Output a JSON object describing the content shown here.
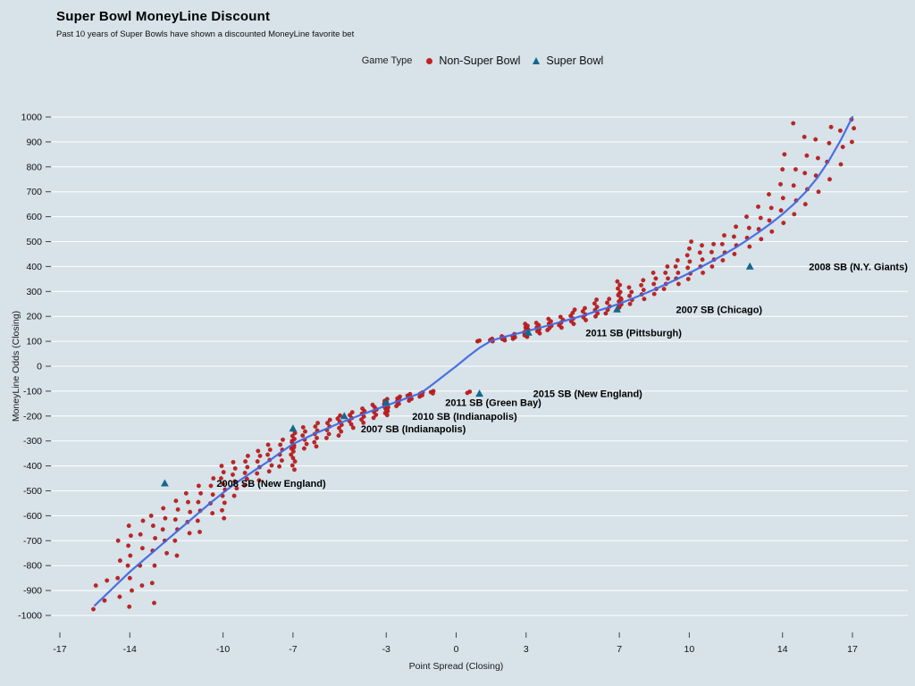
{
  "title": "Super Bowl MoneyLine Discount",
  "subtitle": "Past 10 years of Super Bowls have shown a discounted MoneyLine favorite bet",
  "legend": {
    "label": "Game Type",
    "items": [
      {
        "name": "Non-Super Bowl",
        "color": "#c32222",
        "marker": "circle"
      },
      {
        "name": "Super Bowl",
        "color": "#15688c",
        "marker": "triangle"
      }
    ]
  },
  "chart_data": {
    "type": "scatter",
    "title": "Super Bowl MoneyLine Discount",
    "subtitle": "Past 10 years of Super Bowls have shown a discounted MoneyLine favorite bet",
    "xlabel": "Point Spread (Closing)",
    "ylabel": "MoneyLine Odds (Closing)",
    "xlim": [
      -17,
      17
    ],
    "ylim": [
      -1000,
      1000
    ],
    "x_ticks": [
      -17,
      -14,
      -10,
      -7,
      -3,
      0,
      3,
      7,
      10,
      14,
      17
    ],
    "y_ticks": [
      -1000,
      -900,
      -800,
      -700,
      -600,
      -500,
      -400,
      -300,
      -200,
      -100,
      0,
      100,
      200,
      300,
      400,
      500,
      600,
      700,
      800,
      900,
      1000
    ],
    "grid": {
      "horizontal": true,
      "vertical": false,
      "color": "#ffffff"
    },
    "legend_position": "top-center",
    "series": [
      {
        "name": "Non-Super Bowl",
        "marker": "circle",
        "color": "#c32222",
        "points_by_spread": {
          "-15.5": [
            -880,
            -975
          ],
          "-15": [
            -860,
            -940
          ],
          "-14.5": [
            -700,
            -780,
            -850,
            -925
          ],
          "-14": [
            -640,
            -680,
            -720,
            -760,
            -800,
            -850,
            -900,
            -965
          ],
          "-13.5": [
            -620,
            -675,
            -730,
            -800,
            -880
          ],
          "-13": [
            -600,
            -640,
            -690,
            -740,
            -800,
            -870,
            -950
          ],
          "-12.5": [
            -570,
            -610,
            -655,
            -700,
            -750
          ],
          "-12": [
            -540,
            -575,
            -615,
            -655,
            -700,
            -760
          ],
          "-11.5": [
            -510,
            -545,
            -585,
            -625,
            -670
          ],
          "-11": [
            -480,
            -510,
            -545,
            -580,
            -620,
            -665
          ],
          "-10.5": [
            -450,
            -480,
            -515,
            -550,
            -590
          ],
          "-10": [
            -400,
            -425,
            -450,
            -472,
            -495,
            -520,
            -548,
            -578,
            -610
          ],
          "-9.5": [
            -385,
            -410,
            -435,
            -462,
            -490,
            -520
          ],
          "-9": [
            -360,
            -382,
            -405,
            -428,
            -452,
            -478
          ],
          "-8.5": [
            -340,
            -360,
            -382,
            -405,
            -430,
            -458
          ],
          "-8": [
            -315,
            -335,
            -355,
            -376,
            -398,
            -422
          ],
          "-7.5": [
            -295,
            -315,
            -335,
            -355,
            -378,
            -402
          ],
          "-7": [
            -255,
            -268,
            -280,
            -292,
            -305,
            -318,
            -330,
            -342,
            -355,
            -368,
            -382,
            -398,
            -415,
            -300,
            -325
          ],
          "-6.5": [
            -245,
            -262,
            -278,
            -295,
            -312,
            -330
          ],
          "-6": [
            -228,
            -242,
            -258,
            -272,
            -288,
            -305,
            -322
          ],
          "-5.5": [
            -215,
            -228,
            -242,
            -256,
            -272,
            -288
          ],
          "-5": [
            -198,
            -210,
            -222,
            -235,
            -248,
            -262,
            -278
          ],
          "-4.5": [
            -185,
            -196,
            -208,
            -220,
            -233,
            -247
          ],
          "-4": [
            -170,
            -180,
            -191,
            -202,
            -214,
            -227
          ],
          "-3.5": [
            -155,
            -164,
            -174,
            -184,
            -195,
            -207
          ],
          "-3": [
            -132,
            -139,
            -146,
            -152,
            -158,
            -165,
            -172,
            -180,
            -188,
            -196,
            -142,
            -150,
            -162,
            -175
          ],
          "-2.5": [
            -122,
            -129,
            -136,
            -143,
            -151,
            -160
          ],
          "-2": [
            -112,
            -118,
            -124,
            -131,
            -138
          ],
          "-1.5": [
            -105,
            -110,
            -116,
            -122
          ],
          "-1": [
            -100,
            -104,
            -109
          ],
          "0.5": [
            -102,
            -107
          ],
          "1": [
            100,
            103
          ],
          "1.5": [
            100,
            105,
            110
          ],
          "2": [
            104,
            109,
            114,
            120
          ],
          "2.5": [
            110,
            116,
            122,
            129
          ],
          "3": [
            118,
            124,
            130,
            136,
            142,
            148,
            155,
            162,
            170,
            126,
            134,
            145
          ],
          "3.5": [
            132,
            140,
            148,
            156,
            165,
            174
          ],
          "4": [
            145,
            153,
            162,
            171,
            180,
            190
          ],
          "4.5": [
            155,
            165,
            175,
            186,
            198
          ],
          "5": [
            170,
            180,
            191,
            202,
            214,
            227
          ],
          "5.5": [
            185,
            196,
            208,
            220,
            233
          ],
          "6": [
            200,
            212,
            225,
            238,
            252,
            267
          ],
          "6.5": [
            212,
            226,
            240,
            255,
            270
          ],
          "7": [
            225,
            236,
            248,
            260,
            272,
            285,
            298,
            312,
            326,
            340,
            242,
            268,
            290
          ],
          "7.5": [
            250,
            266,
            282,
            298,
            316
          ],
          "8": [
            270,
            288,
            306,
            325,
            345
          ],
          "8.5": [
            290,
            310,
            330,
            352,
            375
          ],
          "9": [
            310,
            330,
            352,
            375,
            400
          ],
          "9.5": [
            330,
            352,
            375,
            400,
            425
          ],
          "10": [
            350,
            372,
            395,
            420,
            445,
            472,
            500
          ],
          "10.5": [
            375,
            400,
            428,
            456,
            485
          ],
          "11": [
            400,
            428,
            458,
            490
          ],
          "11.5": [
            425,
            456,
            490,
            525
          ],
          "12": [
            450,
            485,
            520,
            560
          ],
          "12.5": [
            480,
            515,
            555,
            600
          ],
          "13": [
            510,
            550,
            595,
            640
          ],
          "13.5": [
            540,
            585,
            635,
            690
          ],
          "14": [
            575,
            625,
            675,
            730,
            790,
            850
          ],
          "14.5": [
            610,
            665,
            725,
            790,
            975
          ],
          "15": [
            650,
            710,
            775,
            845,
            920
          ],
          "15.5": [
            700,
            765,
            835,
            910
          ],
          "16": [
            750,
            820,
            895,
            960
          ],
          "16.5": [
            810,
            880,
            945
          ],
          "17": [
            900,
            955,
            990
          ]
        }
      },
      {
        "name": "Super Bowl",
        "marker": "triangle",
        "color": "#15688c",
        "points": [
          {
            "x": -12.5,
            "y": -470,
            "label": "2008 SB (New England)",
            "label_dx": 58
          },
          {
            "x": -7,
            "y": -250,
            "label": "2007 SB (Indianapolis)",
            "label_dx": 76
          },
          {
            "x": -4.8,
            "y": -200,
            "label": "2010 SB (Indianapolis)",
            "label_dx": 76
          },
          {
            "x": -3,
            "y": -145,
            "label": "2011 SB (Green Bay)",
            "label_dx": 66
          },
          {
            "x": 1,
            "y": -110,
            "label": "2015 SB (New England)",
            "label_dx": 60
          },
          {
            "x": 3.1,
            "y": 135,
            "label": "2011 SB (Pittsburgh)",
            "label_dx": 64
          },
          {
            "x": 6.9,
            "y": 228,
            "label": "2007 SB (Chicago)",
            "label_dx": 66
          },
          {
            "x": 12.6,
            "y": 400,
            "label": "2008 SB (N.Y. Giants)",
            "label_dx": 66
          }
        ]
      }
    ],
    "trend_line": {
      "color": "#4169e1",
      "points": [
        [
          -15.5,
          -960
        ],
        [
          -15,
          -915
        ],
        [
          -14.5,
          -870
        ],
        [
          -14,
          -825
        ],
        [
          -13.5,
          -785
        ],
        [
          -13,
          -745
        ],
        [
          -12.5,
          -705
        ],
        [
          -12,
          -665
        ],
        [
          -11.5,
          -625
        ],
        [
          -11,
          -585
        ],
        [
          -10.5,
          -545
        ],
        [
          -10,
          -508
        ],
        [
          -9.5,
          -472
        ],
        [
          -9,
          -440
        ],
        [
          -8.5,
          -409
        ],
        [
          -8,
          -378
        ],
        [
          -7.5,
          -344
        ],
        [
          -7,
          -312
        ],
        [
          -6.5,
          -290
        ],
        [
          -6,
          -268
        ],
        [
          -5.5,
          -248
        ],
        [
          -5,
          -228
        ],
        [
          -4.5,
          -210
        ],
        [
          -4,
          -192
        ],
        [
          -3.5,
          -175
        ],
        [
          -3,
          -158
        ],
        [
          -2.5,
          -141
        ],
        [
          -2,
          -124
        ],
        [
          -1.5,
          -107
        ],
        [
          -1,
          -72
        ],
        [
          -0.5,
          -36
        ],
        [
          0,
          0
        ],
        [
          0.5,
          38
        ],
        [
          1,
          74
        ],
        [
          1.5,
          102
        ],
        [
          2,
          116
        ],
        [
          2.5,
          128
        ],
        [
          3,
          140
        ],
        [
          3.5,
          152
        ],
        [
          4,
          165
        ],
        [
          4.5,
          178
        ],
        [
          5,
          191
        ],
        [
          5.5,
          205
        ],
        [
          6,
          220
        ],
        [
          6.5,
          235
        ],
        [
          7,
          251
        ],
        [
          7.5,
          269
        ],
        [
          8,
          288
        ],
        [
          8.5,
          308
        ],
        [
          9,
          329
        ],
        [
          9.5,
          351
        ],
        [
          10,
          374
        ],
        [
          10.5,
          398
        ],
        [
          11,
          423
        ],
        [
          11.5,
          449
        ],
        [
          12,
          477
        ],
        [
          12.5,
          507
        ],
        [
          13,
          539
        ],
        [
          13.5,
          573
        ],
        [
          14,
          610
        ],
        [
          14.5,
          652
        ],
        [
          15,
          700
        ],
        [
          15.5,
          757
        ],
        [
          16,
          826
        ],
        [
          16.5,
          908
        ],
        [
          17,
          1000
        ]
      ]
    }
  }
}
